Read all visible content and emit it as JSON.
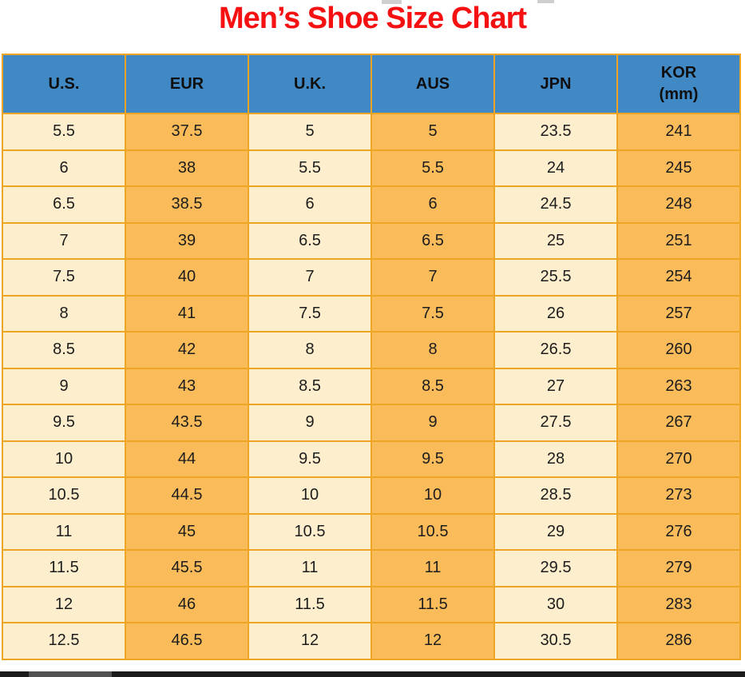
{
  "title": "Men’s Shoe Size Chart",
  "header": {
    "columns": [
      {
        "label": "U.S."
      },
      {
        "label": "EUR"
      },
      {
        "label": "U.K."
      },
      {
        "label": "AUS"
      },
      {
        "label": "JPN"
      },
      {
        "label": "KOR",
        "sub": "(mm)"
      }
    ]
  },
  "chart_data": {
    "type": "table",
    "title": "Men’s Shoe Size Chart",
    "columns": [
      "U.S.",
      "EUR",
      "U.K.",
      "AUS",
      "JPN",
      "KOR (mm)"
    ],
    "rows": [
      [
        5.5,
        37.5,
        5,
        5,
        23.5,
        241
      ],
      [
        6,
        38,
        5.5,
        5.5,
        24,
        245
      ],
      [
        6.5,
        38.5,
        6,
        6,
        24.5,
        248
      ],
      [
        7,
        39,
        6.5,
        6.5,
        25,
        251
      ],
      [
        7.5,
        40,
        7,
        7,
        25.5,
        254
      ],
      [
        8,
        41,
        7.5,
        7.5,
        26,
        257
      ],
      [
        8.5,
        42,
        8,
        8,
        26.5,
        260
      ],
      [
        9,
        43,
        8.5,
        8.5,
        27,
        263
      ],
      [
        9.5,
        43.5,
        9,
        9,
        27.5,
        267
      ],
      [
        10,
        44,
        9.5,
        9.5,
        28,
        270
      ],
      [
        10.5,
        44.5,
        10,
        10,
        28.5,
        273
      ],
      [
        11,
        45,
        10.5,
        10.5,
        29,
        276
      ],
      [
        11.5,
        45.5,
        11,
        11,
        29.5,
        279
      ],
      [
        12,
        46,
        11.5,
        11.5,
        30,
        283
      ],
      [
        12.5,
        46.5,
        12,
        12,
        30.5,
        286
      ]
    ]
  },
  "colors": {
    "title_red": "#f51111",
    "header_blue": "#4189c5",
    "cell_cream": "#fdeecd",
    "cell_orange": "#fabc5a",
    "grid_orange": "#efa524",
    "text_dark": "#1d1d1d"
  }
}
